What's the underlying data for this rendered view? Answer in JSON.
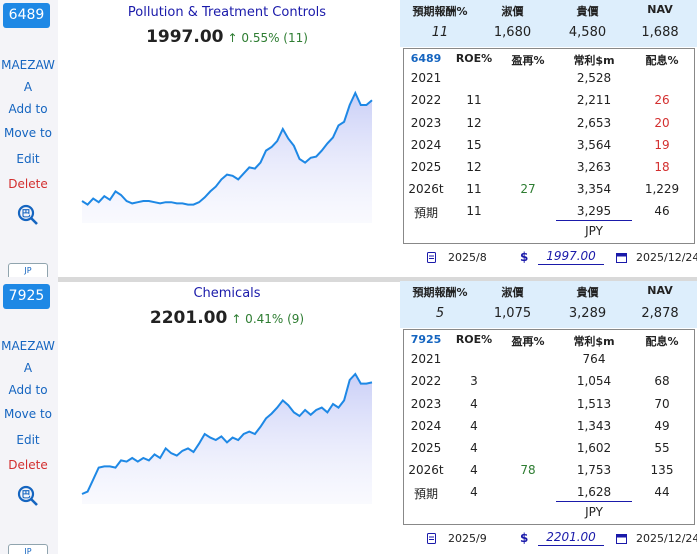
{
  "labels": {
    "side_links": [
      "MAEZAW",
      "A",
      "Add to",
      "Move to",
      "Edit",
      "Delete"
    ],
    "jp_button": "JP",
    "header": [
      "預期報酬%",
      "淑價",
      "貴價",
      "NAV"
    ],
    "table_headers": [
      "ROE%",
      "盈再%",
      "常利$m",
      "配息%"
    ],
    "currency": "JPY",
    "dollar": "$"
  },
  "cards": [
    {
      "code": "6489",
      "sector": "Pollution & Treatment Controls",
      "price": "1997.00",
      "change": "↑ 0.55% (11)",
      "header_values": [
        "11",
        "1,680",
        "4,580",
        "1,688"
      ],
      "rows": [
        {
          "year": "2021",
          "roe": "",
          "reinv": "",
          "profit": "2,528",
          "div": ""
        },
        {
          "year": "2022",
          "roe": "11",
          "reinv": "",
          "profit": "2,211",
          "div": "26"
        },
        {
          "year": "2023",
          "roe": "12",
          "reinv": "",
          "profit": "2,653",
          "div": "20"
        },
        {
          "year": "2024",
          "roe": "15",
          "reinv": "",
          "profit": "3,564",
          "div": "19"
        },
        {
          "year": "2025",
          "roe": "12",
          "reinv": "",
          "profit": "3,263",
          "div": "18"
        },
        {
          "year": "2026t",
          "roe": "11",
          "reinv": "27",
          "profit": "3,354",
          "div": "1,229"
        },
        {
          "year": "預期",
          "roe": "11",
          "reinv": "",
          "profit": "3,295",
          "div": "46"
        }
      ],
      "footer": {
        "report_date": "2025/8",
        "price_input": "1997.00",
        "price_date": "2025/12/24"
      },
      "spark": [
        0.1,
        0.07,
        0.12,
        0.09,
        0.14,
        0.11,
        0.18,
        0.15,
        0.1,
        0.08,
        0.09,
        0.1,
        0.1,
        0.09,
        0.08,
        0.09,
        0.09,
        0.08,
        0.08,
        0.07,
        0.07,
        0.09,
        0.13,
        0.18,
        0.22,
        0.28,
        0.32,
        0.31,
        0.28,
        0.33,
        0.38,
        0.37,
        0.42,
        0.52,
        0.55,
        0.6,
        0.7,
        0.62,
        0.56,
        0.45,
        0.42,
        0.46,
        0.47,
        0.52,
        0.58,
        0.63,
        0.73,
        0.76,
        0.9,
        1.0,
        0.9,
        0.9,
        0.94
      ]
    },
    {
      "code": "7925",
      "sector": "Chemicals",
      "price": "2201.00",
      "change": "↑ 0.41% (9)",
      "header_values": [
        "5",
        "1,075",
        "3,289",
        "2,878"
      ],
      "rows": [
        {
          "year": "2021",
          "roe": "",
          "reinv": "",
          "profit": "764",
          "div": ""
        },
        {
          "year": "2022",
          "roe": "3",
          "reinv": "",
          "profit": "1,054",
          "div": "68"
        },
        {
          "year": "2023",
          "roe": "4",
          "reinv": "",
          "profit": "1,513",
          "div": "70"
        },
        {
          "year": "2024",
          "roe": "4",
          "reinv": "",
          "profit": "1,343",
          "div": "49"
        },
        {
          "year": "2025",
          "roe": "4",
          "reinv": "",
          "profit": "1,602",
          "div": "55"
        },
        {
          "year": "2026t",
          "roe": "4",
          "reinv": "78",
          "profit": "1,753",
          "div": "135"
        },
        {
          "year": "預期",
          "roe": "4",
          "reinv": "",
          "profit": "1,628",
          "div": "44"
        }
      ],
      "footer": {
        "report_date": "2025/9",
        "price_input": "2201.00",
        "price_date": "2025/12/24"
      },
      "spark": [
        0.0,
        0.02,
        0.12,
        0.22,
        0.23,
        0.23,
        0.22,
        0.28,
        0.27,
        0.3,
        0.27,
        0.3,
        0.28,
        0.33,
        0.3,
        0.38,
        0.34,
        0.32,
        0.36,
        0.38,
        0.35,
        0.42,
        0.5,
        0.47,
        0.45,
        0.48,
        0.43,
        0.47,
        0.45,
        0.5,
        0.52,
        0.5,
        0.56,
        0.63,
        0.67,
        0.72,
        0.78,
        0.74,
        0.68,
        0.65,
        0.7,
        0.66,
        0.7,
        0.72,
        0.68,
        0.75,
        0.72,
        0.78,
        0.95,
        1.0,
        0.92,
        0.92,
        0.93
      ]
    }
  ]
}
